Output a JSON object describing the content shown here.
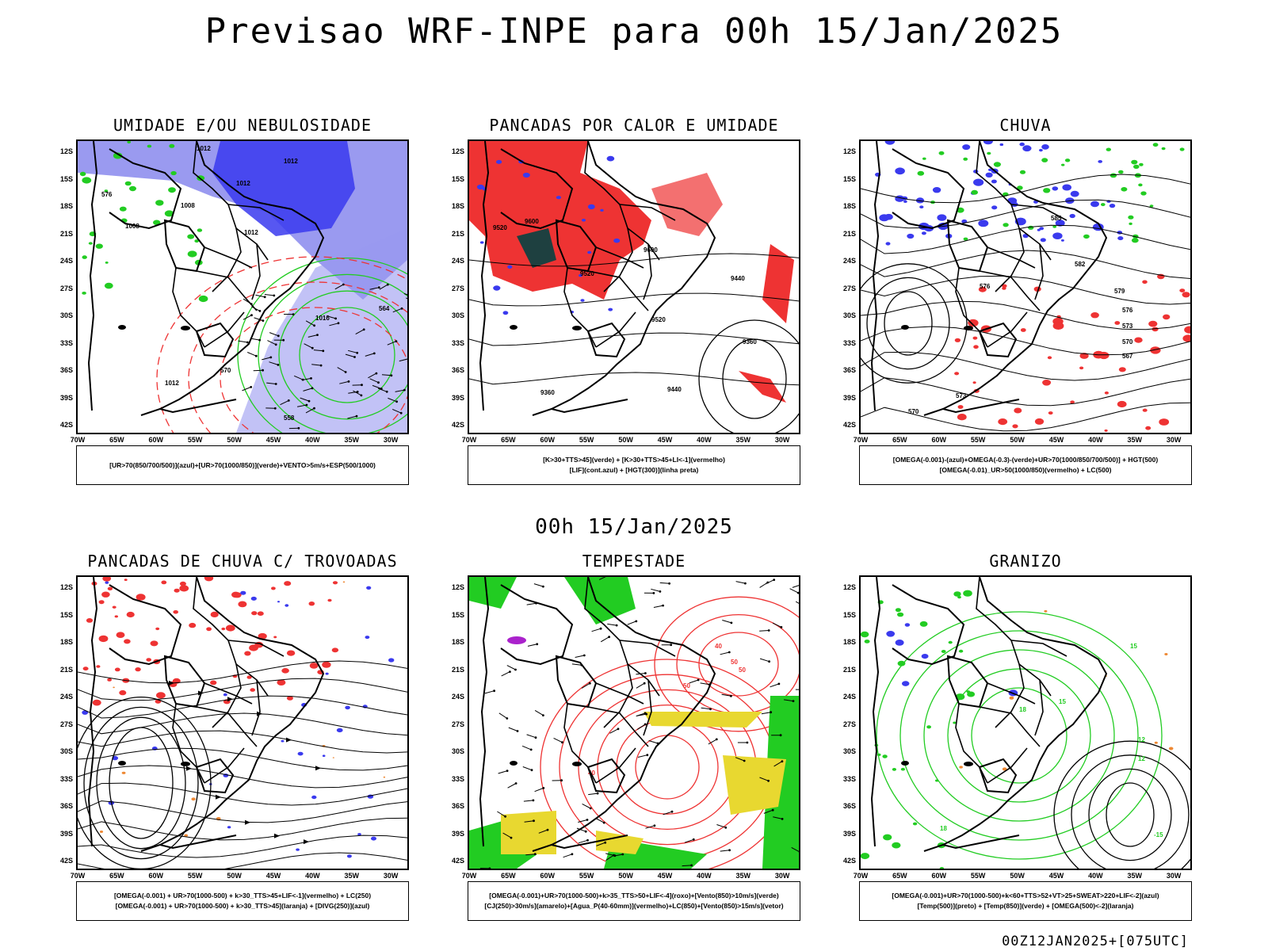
{
  "header": {
    "title": "Previsao WRF-INPE  para 00h 15/Jan/2025",
    "mid_date": "00h 15/Jan/2025",
    "run_info": "00Z12JAN2025+[075UTC]"
  },
  "axes": {
    "latitudes": [
      "12S",
      "15S",
      "18S",
      "21S",
      "24S",
      "27S",
      "30S",
      "33S",
      "36S",
      "39S",
      "42S"
    ],
    "longitudes": [
      "70W",
      "65W",
      "60W",
      "55W",
      "50W",
      "45W",
      "40W",
      "35W",
      "30W"
    ]
  },
  "colors": {
    "blue": "#3a3aee",
    "light_blue": "#9a9af0",
    "green": "#22cc22",
    "red": "#ee3333",
    "dark_teal": "#1e4040",
    "yellow": "#e8d830",
    "orange": "#ee8833",
    "purple": "#aa22cc"
  },
  "panels": [
    {
      "title": "UMIDADE E/OU NEBULOSIDADE",
      "legend": [
        "[UR>70(850/700/500)](azul)+[UR>70(1000/850)](verde)+VENTO>5m/s+ESP(500/1000)"
      ],
      "labels": [
        "1012",
        "1012",
        "1012",
        "1008",
        "1008",
        "1012",
        "1016",
        "1012",
        "576",
        "570",
        "564",
        "558"
      ]
    },
    {
      "title": "PANCADAS POR CALOR E UMIDADE",
      "legend": [
        "[K>30+TTS>45](verde) + [K>30+TTS>45+LI<-1](vermelho)",
        "[LIF](cont.azul) + [HGT(300)](linha preta)"
      ],
      "labels": [
        "9600",
        "9520",
        "9600",
        "9520",
        "9520",
        "9440",
        "9440",
        "9360",
        "9360"
      ]
    },
    {
      "title": "CHUVA",
      "legend": [
        "[OMEGA(-0.001)-(azul)+OMEGA(-0.3)-(verde)+UR>70(1000/850/700/500)] + HGT(500)",
        "[OMEGA(-0.01)_UR>50(1000/850)(vermelho) + LC(500)"
      ],
      "labels": [
        "585",
        "582",
        "579",
        "576",
        "573",
        "570",
        "567",
        "576",
        "573",
        "570"
      ]
    },
    {
      "title": "PANCADAS DE CHUVA C/ TROVOADAS",
      "legend": [
        "[OMEGA(-0.001) + UR>70(1000-500) + k>30_TTS>45+LIF<-1](vermelho) + LC(250)",
        "[OMEGA(-0.001) + UR>70(1000-500) + k>30_TTS>45](laranja) + [DIVG(250)](azul)"
      ],
      "labels": []
    },
    {
      "title": "TEMPESTADE",
      "legend": [
        "[OMEGA(-0.001)+UR>70(1000-500)+k>35_TTS>50+LIF<-4](roxo)+[Vento(850)>10m/s](verde)",
        "[CJ(250)>30m/s](amarelo)+[Agua_P(40-60mm)](vermelho)+LC(850)+[Vento(850)>15m/s](vetor)"
      ],
      "labels": [
        "50",
        "50",
        "50",
        "40",
        "40"
      ]
    },
    {
      "title": "GRANIZO",
      "legend": [
        "[OMEGA(-0.001)+UR>70(1000-500)+k<60+TTS>52+VT>25+SWEAT>220+LIF<-2](azul)",
        "[Temp(500)](preto) + [Temp(850)](verde) + [OMEGA(500)<-2](laranja)"
      ],
      "labels": [
        "15",
        "15",
        "12",
        "12",
        "-15",
        "18",
        "18"
      ]
    }
  ]
}
